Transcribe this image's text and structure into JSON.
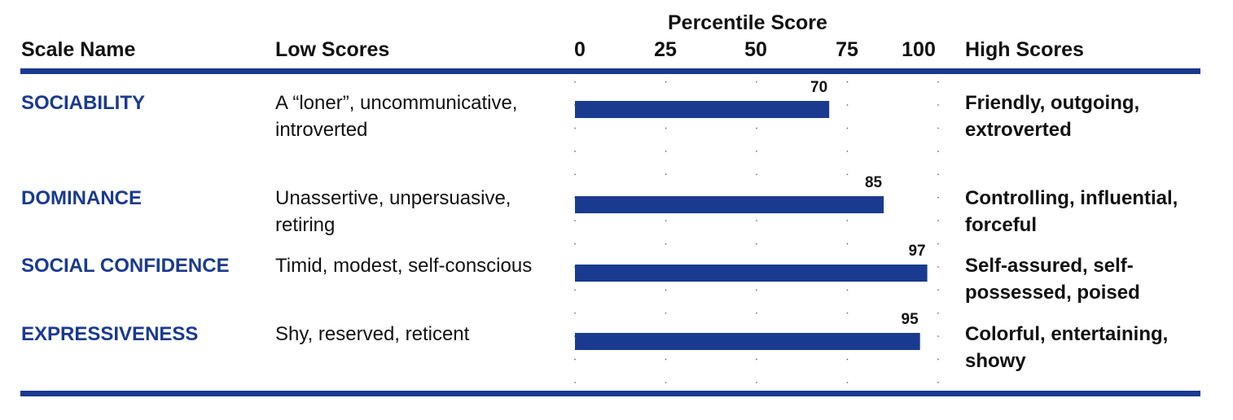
{
  "header": {
    "scale_name": "Scale Name",
    "low_scores": "Low Scores",
    "percentile_title": "Percentile Score",
    "high_scores": "High Scores"
  },
  "colors": {
    "accent": "#1a3a8f",
    "text": "#111111"
  },
  "chart_data": {
    "type": "bar",
    "orientation": "horizontal",
    "title": "Percentile Score",
    "xlim": [
      0,
      100
    ],
    "ticks": [
      "0",
      "25",
      "50",
      "75",
      "100"
    ],
    "tick_values": [
      0,
      25,
      50,
      75,
      100
    ],
    "categories": [
      "SOCIABILITY",
      "DOMINANCE",
      "SOCIAL CONFIDENCE",
      "EXPRESSIVENESS"
    ],
    "values": [
      70,
      85,
      97,
      95
    ],
    "data_labels": [
      "70",
      "85",
      "97",
      "95"
    ],
    "grid": "dotted vertical"
  },
  "rows": [
    {
      "name": "SOCIABILITY",
      "low": "A “loner”, uncommunicative, introverted",
      "high": "Friendly, outgoing, extroverted"
    },
    {
      "name": "DOMINANCE",
      "low": "Unassertive, unpersuasive, retiring",
      "high": "Controlling, influential, forceful"
    },
    {
      "name": "SOCIAL CONFIDENCE",
      "low": "Timid, modest, self-conscious",
      "high": "Self-assured, self-possessed, poised"
    },
    {
      "name": "EXPRESSIVENESS",
      "low": "Shy, reserved, reticent",
      "high": "Colorful, entertaining, showy"
    }
  ]
}
